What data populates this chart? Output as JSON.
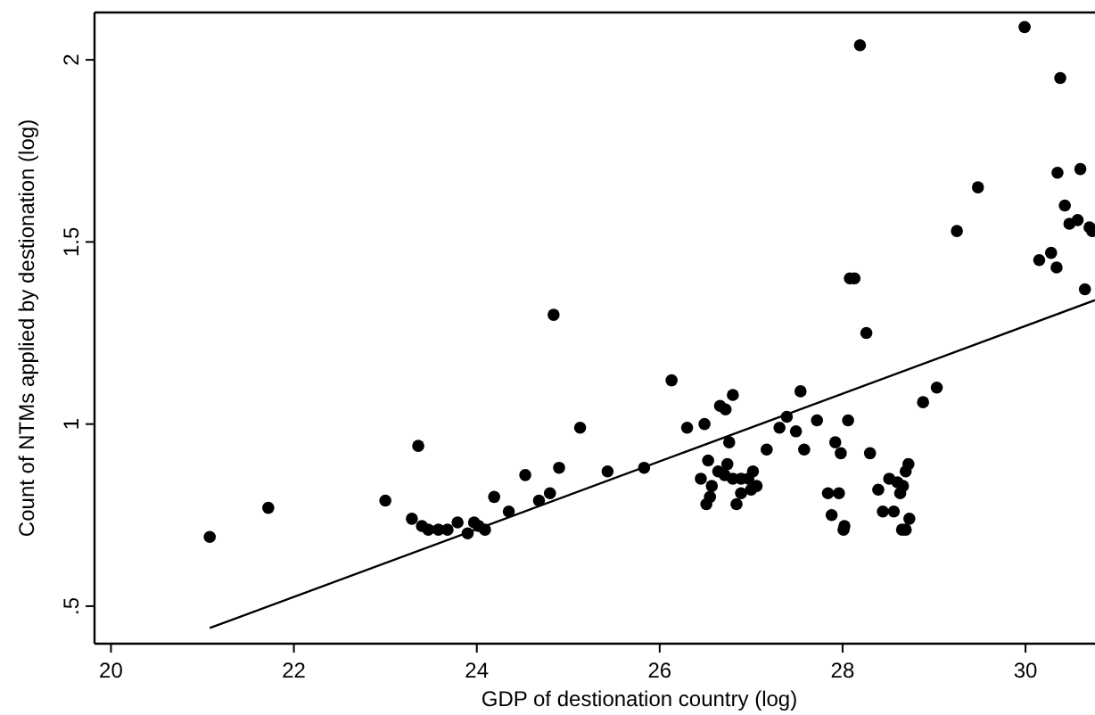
{
  "chart_data": {
    "type": "scatter",
    "xlabel": "GDP of destionation country (log)",
    "ylabel": "Count of NTMs applied by destionation (log)",
    "xlim": [
      19.82,
      30.76
    ],
    "ylim": [
      0.397,
      2.13
    ],
    "xticks": [
      20,
      22,
      24,
      26,
      28,
      30
    ],
    "yticks": [
      {
        "value": 0.5,
        "label": ".5"
      },
      1,
      1.5,
      2
    ],
    "grid": false,
    "series": [
      {
        "color": "#000000",
        "marker": "circle",
        "x": [
          21.08,
          21.72,
          23.0,
          23.36,
          23.29,
          23.4,
          23.47,
          23.58,
          23.68,
          23.79,
          23.9,
          23.97,
          24.02,
          24.09,
          24.19,
          24.35,
          24.53,
          24.68,
          24.8,
          24.84,
          24.9,
          25.13,
          25.43,
          25.83,
          26.13,
          26.3,
          26.49,
          26.53,
          26.45,
          26.57,
          26.55,
          26.51,
          26.66,
          26.72,
          26.8,
          26.76,
          26.64,
          26.74,
          26.71,
          26.8,
          26.89,
          26.84,
          26.89,
          26.97,
          27.02,
          27.0,
          27.06,
          27.17,
          27.31,
          27.39,
          27.49,
          27.54,
          27.58,
          27.72,
          27.84,
          27.88,
          27.92,
          27.96,
          27.98,
          28.01,
          28.02,
          28.06,
          28.08,
          28.13,
          28.19,
          28.26,
          28.3,
          28.39,
          28.44,
          28.51,
          28.56,
          28.6,
          28.63,
          28.66,
          28.69,
          28.72,
          28.65,
          28.69,
          28.73,
          28.88,
          29.03,
          29.25,
          29.48,
          29.99,
          30.15,
          30.28,
          30.34,
          30.35,
          30.38,
          30.43,
          30.48,
          30.57,
          30.6,
          30.65,
          30.7,
          30.73
        ],
        "values": [
          0.69,
          0.77,
          0.79,
          0.94,
          0.74,
          0.72,
          0.71,
          0.71,
          0.71,
          0.73,
          0.7,
          0.73,
          0.72,
          0.71,
          0.8,
          0.76,
          0.86,
          0.79,
          0.81,
          1.3,
          0.88,
          0.99,
          0.87,
          0.88,
          1.12,
          0.99,
          1.0,
          0.9,
          0.85,
          0.83,
          0.8,
          0.78,
          1.05,
          1.04,
          1.08,
          0.95,
          0.87,
          0.89,
          0.86,
          0.85,
          0.85,
          0.78,
          0.81,
          0.85,
          0.87,
          0.82,
          0.83,
          0.93,
          0.99,
          1.02,
          0.98,
          1.09,
          0.93,
          1.01,
          0.81,
          0.75,
          0.95,
          0.81,
          0.92,
          0.71,
          0.72,
          1.01,
          1.4,
          1.4,
          2.04,
          1.25,
          0.92,
          0.82,
          0.76,
          0.85,
          0.76,
          0.84,
          0.81,
          0.83,
          0.87,
          0.89,
          0.71,
          0.71,
          0.74,
          1.06,
          1.1,
          1.53,
          1.65,
          2.09,
          1.45,
          1.47,
          1.43,
          1.69,
          1.95,
          1.6,
          1.55,
          1.56,
          1.7,
          1.37,
          1.54,
          1.53
        ]
      },
      {
        "type": "line",
        "color": "#000000",
        "line_style": "solid",
        "x": [
          21.08,
          30.76
        ],
        "values": [
          0.44,
          1.34
        ]
      }
    ]
  }
}
